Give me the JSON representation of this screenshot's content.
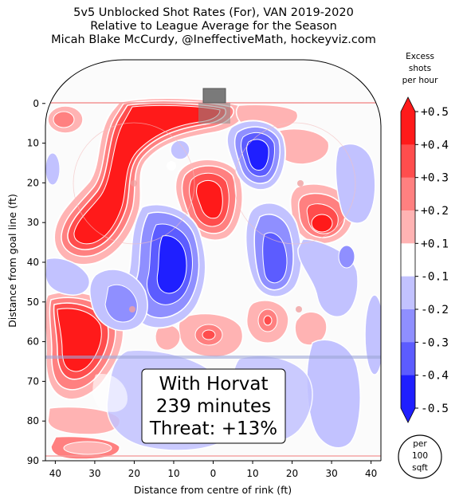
{
  "title_lines": [
    "5v5 Unblocked Shot Rates (For), VAN 2019-2020",
    "Relative to League Average for the Season",
    "Micah Blake McCurdy, @IneffectiveMath, hockeyviz.com"
  ],
  "chart_data": {
    "type": "heatmap",
    "xlabel": "Distance from centre of rink (ft)",
    "ylabel": "Distance from goal line (ft)",
    "xlim": [
      42.5,
      -42.5
    ],
    "ylim": [
      90,
      -11
    ],
    "x_ticks": [
      "40",
      "30",
      "20",
      "10",
      "0",
      "10",
      "20",
      "30",
      "40"
    ],
    "x_tick_values": [
      40,
      30,
      20,
      10,
      0,
      -10,
      -20,
      -30,
      -40
    ],
    "y_ticks": [
      "0",
      "10",
      "20",
      "30",
      "40",
      "50",
      "60",
      "70",
      "80",
      "90"
    ],
    "y_tick_values": [
      0,
      10,
      20,
      30,
      40,
      50,
      60,
      70,
      80,
      90
    ],
    "colorbar": {
      "header": [
        "Excess",
        "shots",
        "per hour"
      ],
      "labels": [
        "+0.5",
        "+0.4",
        "+0.3",
        "+0.2",
        "+0.1",
        "-0.1",
        "-0.2",
        "-0.3",
        "-0.4",
        "-0.5"
      ],
      "colors": [
        "#ff1a1a",
        "#ff4d4d",
        "#ff8080",
        "#ffb3b3",
        "#ffffff",
        "#c2c2ff",
        "#8f8fff",
        "#5c5cff",
        "#1f1fff"
      ],
      "unit_badge": [
        "per",
        "100",
        "sqft"
      ]
    },
    "annotation": [
      "With Horvat",
      "239 minutes",
      "Threat: +13%"
    ],
    "regions": [
      {
        "sign": "+",
        "peak": 0.5,
        "x": 17,
        "y": 8
      },
      {
        "sign": "+",
        "peak": 0.5,
        "x": 27,
        "y": 24
      },
      {
        "sign": "+",
        "peak": 0.5,
        "x": 35,
        "y": 31
      },
      {
        "sign": "+",
        "peak": 0.5,
        "x": 32,
        "y": 57
      },
      {
        "sign": "+",
        "peak": 0.4,
        "x": 3,
        "y": 28
      },
      {
        "sign": "+",
        "peak": 0.4,
        "x": -25,
        "y": 30
      },
      {
        "sign": "-",
        "peak": -0.4,
        "x": -11,
        "y": 13
      },
      {
        "sign": "-",
        "peak": -0.4,
        "x": 6,
        "y": 45
      },
      {
        "sign": "-",
        "peak": -0.3,
        "x": -16,
        "y": 39
      },
      {
        "sign": "+",
        "peak": 0.2,
        "x": 1,
        "y": 58
      },
      {
        "sign": "+",
        "peak": 0.2,
        "x": -13,
        "y": 56
      }
    ]
  }
}
